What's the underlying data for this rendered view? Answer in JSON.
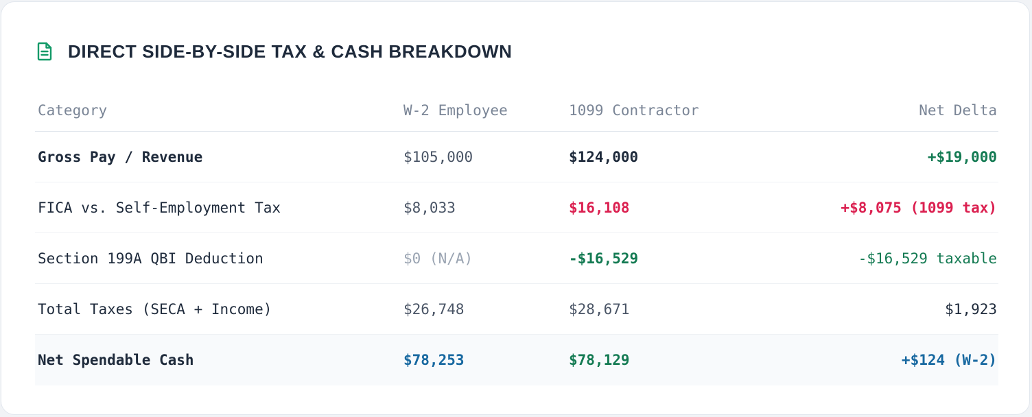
{
  "card": {
    "title": "DIRECT SIDE-BY-SIDE TAX & CASH BREAKDOWN",
    "title_icon": "document-icon",
    "accent": "#139a68"
  },
  "table": {
    "headers": [
      "Category",
      "W-2 Employee",
      "1099 Contractor",
      "Net Delta"
    ],
    "rows": [
      {
        "category": "Gross Pay / Revenue",
        "w2": "$105,000",
        "contractor": "$124,000",
        "delta": "+$19,000"
      },
      {
        "category": "FICA vs. Self-Employment Tax",
        "w2": "$8,033",
        "contractor": "$16,108",
        "delta": "+$8,075 (1099 tax)"
      },
      {
        "category": "Section 199A QBI Deduction",
        "w2": "$0 (N/A)",
        "contractor": "-$16,529",
        "delta": "-$16,529 taxable"
      },
      {
        "category": "Total Taxes (SECA + Income)",
        "w2": "$26,748",
        "contractor": "$28,671",
        "delta": "$1,923"
      },
      {
        "category": "Net Spendable Cash",
        "w2": "$78,253",
        "contractor": "$78,129",
        "delta": "+$124 (W-2)"
      }
    ]
  },
  "colors": {
    "positive": "#137a52",
    "negative": "#db2050",
    "highlight": "#1768a0",
    "text": "#1e2a3b",
    "muted": "#9aa4b2"
  }
}
